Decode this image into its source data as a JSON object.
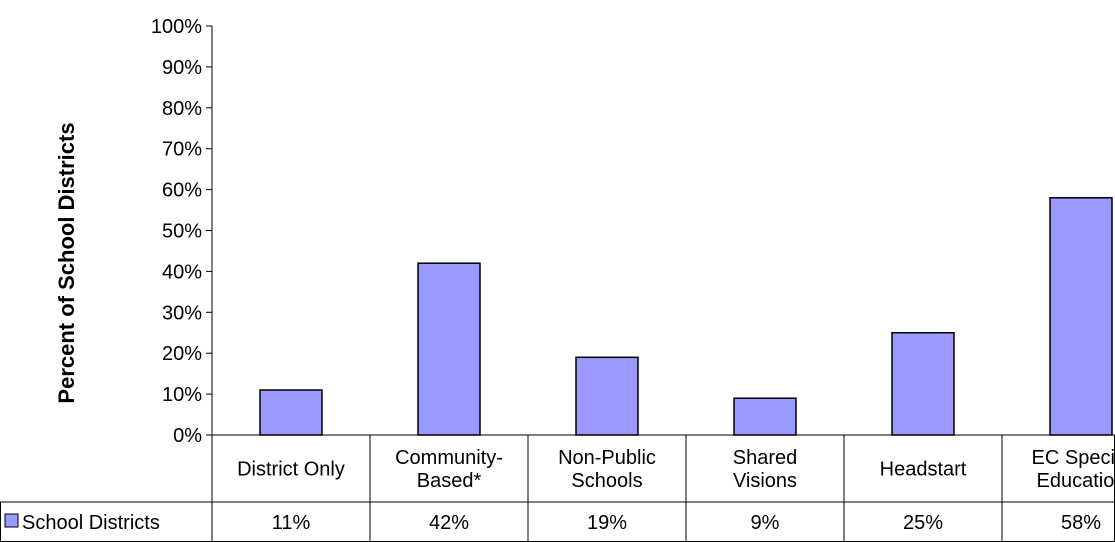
{
  "chart_data": {
    "type": "bar",
    "ylabel": "Percent of School Districts",
    "ylim": [
      0,
      100
    ],
    "y_ticks": [
      0,
      10,
      20,
      30,
      40,
      50,
      60,
      70,
      80,
      90,
      100
    ],
    "y_tick_labels": [
      "0%",
      "10%",
      "20%",
      "30%",
      "40%",
      "50%",
      "60%",
      "70%",
      "80%",
      "90%",
      "100%"
    ],
    "categories": [
      [
        "District Only"
      ],
      [
        "Community-",
        "Based*"
      ],
      [
        "Non-Public",
        "Schools"
      ],
      [
        "Shared",
        "Visions"
      ],
      [
        "Headstart"
      ],
      [
        "EC Special",
        "Education"
      ]
    ],
    "series": [
      {
        "name": "School Districts",
        "values": [
          11,
          42,
          19,
          9,
          25,
          58
        ],
        "value_labels": [
          "11%",
          "42%",
          "19%",
          "9%",
          "25%",
          "58%"
        ],
        "color": "#9999ff"
      }
    ],
    "grid": false,
    "legend": "data-table-left"
  }
}
